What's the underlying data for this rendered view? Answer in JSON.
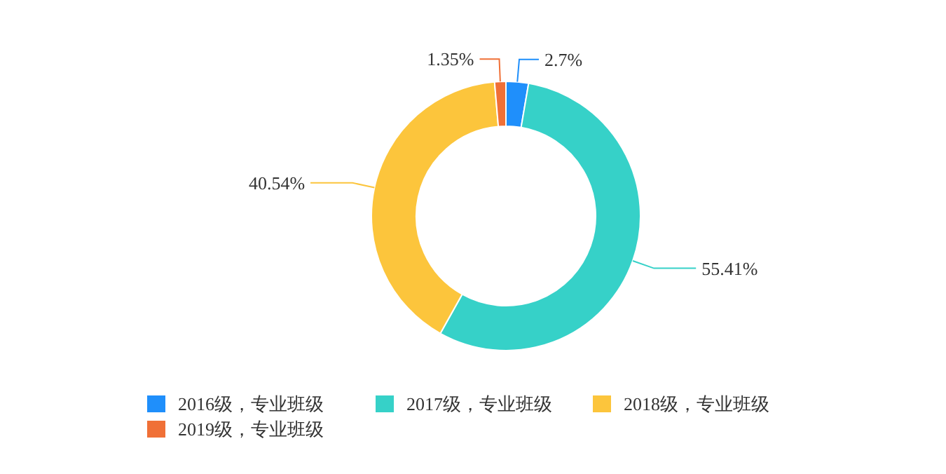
{
  "chart_data": {
    "type": "donut",
    "categories": [
      "2016级，专业班级",
      "2017级，专业班级",
      "2018级，专业班级",
      "2019级，专业班级"
    ],
    "values": [
      2.7,
      55.41,
      40.54,
      1.35
    ],
    "value_labels": [
      "2.7%",
      "55.41%",
      "40.54%",
      "1.35%"
    ],
    "colors": [
      "#1f8ffb",
      "#36d1c8",
      "#fcc53c",
      "#f07037"
    ],
    "legend": "bottom"
  }
}
